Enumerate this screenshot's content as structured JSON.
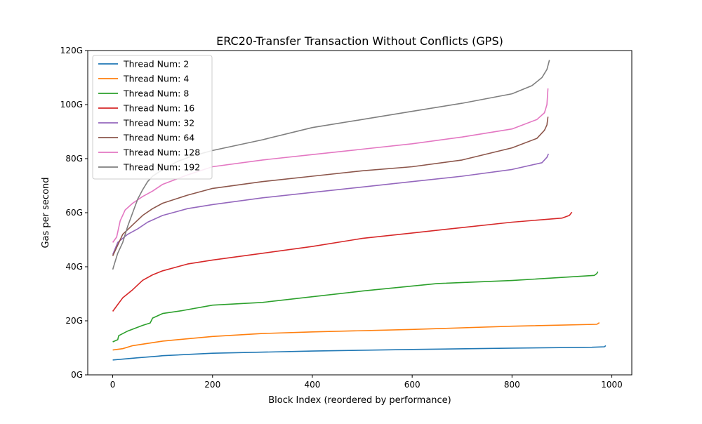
{
  "chart_data": {
    "type": "line",
    "title": "ERC20-Transfer Transaction Without Conflicts (GPS)",
    "xlabel": "Block Index (reordered by performance)",
    "ylabel": "Gas per second",
    "xlim": [
      -50,
      1040
    ],
    "ylim": [
      0,
      120
    ],
    "xticks": [
      0,
      200,
      400,
      600,
      800,
      1000
    ],
    "xtick_labels": [
      "0",
      "200",
      "400",
      "600",
      "800",
      "1000"
    ],
    "yticks": [
      0,
      20,
      40,
      60,
      80,
      100,
      120
    ],
    "ytick_labels": [
      "0G",
      "20G",
      "40G",
      "60G",
      "80G",
      "100G",
      "120G"
    ],
    "y_unit": "G",
    "grid": false,
    "legend_position": "top-left",
    "series": [
      {
        "name": "Thread Num: 2",
        "color": "#1f77b4",
        "x": [
          0,
          50,
          90,
          100,
          200,
          400,
          600,
          800,
          960,
          985,
          988
        ],
        "y": [
          5.5,
          6.3,
          6.9,
          7.1,
          8.0,
          8.8,
          9.4,
          9.9,
          10.2,
          10.4,
          10.8
        ]
      },
      {
        "name": "Thread Num: 4",
        "color": "#ff7f0e",
        "x": [
          0,
          20,
          40,
          100,
          200,
          300,
          400,
          600,
          800,
          970,
          975
        ],
        "y": [
          9.2,
          9.7,
          10.8,
          12.5,
          14.2,
          15.3,
          15.9,
          16.8,
          18.0,
          18.7,
          19.3
        ]
      },
      {
        "name": "Thread Num: 8",
        "color": "#2ca02c",
        "x": [
          0,
          10,
          12,
          30,
          60,
          75,
          80,
          100,
          140,
          200,
          300,
          500,
          650,
          800,
          965,
          970,
          972
        ],
        "y": [
          12.2,
          13.0,
          14.5,
          16.2,
          18.3,
          19.2,
          21.0,
          22.7,
          23.8,
          25.8,
          26.8,
          31.0,
          33.8,
          34.9,
          36.8,
          37.5,
          38.2
        ]
      },
      {
        "name": "Thread Num: 16",
        "color": "#d62728",
        "x": [
          0,
          10,
          20,
          40,
          60,
          80,
          100,
          150,
          200,
          300,
          400,
          500,
          600,
          700,
          800,
          900,
          915,
          920
        ],
        "y": [
          23.5,
          26.0,
          28.5,
          31.5,
          35.0,
          37.0,
          38.5,
          41.0,
          42.5,
          45.0,
          47.5,
          50.5,
          52.5,
          54.5,
          56.5,
          58.0,
          59.0,
          60.2
        ]
      },
      {
        "name": "Thread Num: 32",
        "color": "#9467bd",
        "x": [
          0,
          10,
          30,
          50,
          70,
          100,
          150,
          200,
          300,
          400,
          500,
          600,
          700,
          800,
          860,
          870,
          873
        ],
        "y": [
          44.5,
          49.0,
          52.0,
          54.0,
          56.5,
          59.0,
          61.5,
          63.0,
          65.5,
          67.5,
          69.5,
          71.5,
          73.5,
          76.0,
          78.5,
          80.5,
          81.8
        ]
      },
      {
        "name": "Thread Num: 64",
        "color": "#8c564b",
        "x": [
          0,
          10,
          20,
          40,
          60,
          80,
          100,
          150,
          200,
          300,
          400,
          500,
          600,
          700,
          800,
          850,
          865,
          870,
          872
        ],
        "y": [
          44.0,
          48.0,
          52.0,
          55.5,
          59.0,
          61.5,
          63.5,
          66.5,
          69.0,
          71.5,
          73.5,
          75.5,
          77.0,
          79.5,
          84.0,
          87.5,
          90.5,
          92.5,
          95.5
        ]
      },
      {
        "name": "Thread Num: 128",
        "color": "#e377c2",
        "x": [
          0,
          8,
          15,
          25,
          40,
          60,
          80,
          100,
          150,
          200,
          300,
          400,
          500,
          600,
          700,
          800,
          850,
          865,
          870,
          872
        ],
        "y": [
          49.0,
          51.0,
          57.0,
          61.0,
          63.5,
          66.0,
          68.0,
          70.5,
          74.0,
          77.0,
          79.5,
          81.5,
          83.5,
          85.5,
          88.0,
          91.0,
          94.5,
          97.0,
          100.0,
          106.0
        ]
      },
      {
        "name": "Thread Num: 192",
        "color": "#7f7f7f",
        "x": [
          0,
          5,
          10,
          20,
          30,
          40,
          50,
          60,
          70,
          80,
          100,
          130,
          160,
          200,
          300,
          400,
          500,
          600,
          700,
          800,
          840,
          860,
          870,
          875
        ],
        "y": [
          39.0,
          42.0,
          45.0,
          49.0,
          55.0,
          60.0,
          65.0,
          68.5,
          71.5,
          73.5,
          76.0,
          79.0,
          81.0,
          83.0,
          87.0,
          91.5,
          94.5,
          97.5,
          100.5,
          104.0,
          107.0,
          110.0,
          113.0,
          116.5
        ]
      }
    ]
  }
}
